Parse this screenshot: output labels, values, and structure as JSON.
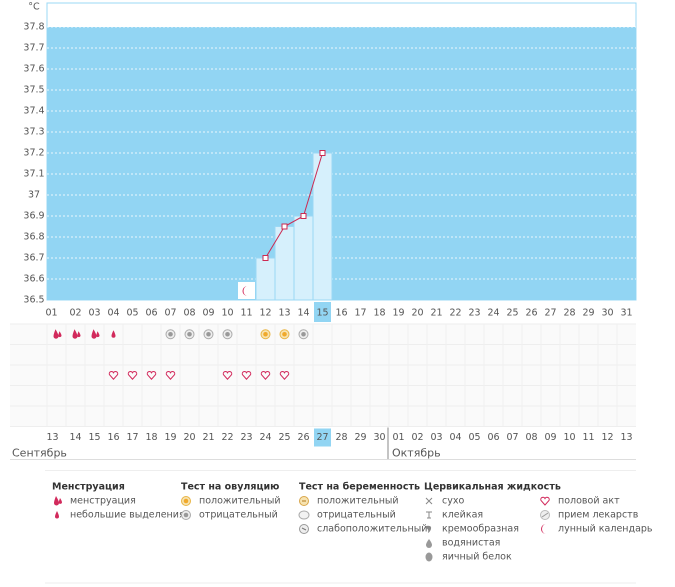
{
  "chart_data": {
    "type": "line",
    "ylabel": "°C",
    "categories": [
      "01",
      "02",
      "03",
      "04",
      "05",
      "06",
      "07",
      "08",
      "09",
      "10",
      "11",
      "12",
      "13",
      "14",
      "15",
      "16",
      "17",
      "18",
      "19",
      "20",
      "21",
      "22",
      "23",
      "24",
      "25",
      "26",
      "27",
      "28",
      "29",
      "30",
      "31"
    ],
    "series": [
      {
        "name": "temperature",
        "color": "#cc2a52",
        "values": [
          null,
          null,
          null,
          null,
          null,
          null,
          null,
          null,
          null,
          null,
          null,
          36.7,
          36.85,
          36.9,
          37.2,
          null,
          null,
          null,
          null,
          null,
          null,
          null,
          null,
          null,
          null,
          null,
          null,
          null,
          null,
          null,
          null
        ]
      }
    ],
    "lunar": [
      null,
      null,
      null,
      null,
      null,
      null,
      null,
      null,
      null,
      null,
      "moon",
      null,
      null,
      null,
      null,
      null,
      null,
      null,
      null,
      null,
      null,
      null,
      null,
      null,
      null,
      null,
      null,
      null,
      null,
      null,
      null
    ],
    "today": [
      false,
      false,
      false,
      false,
      false,
      false,
      false,
      false,
      false,
      false,
      false,
      false,
      false,
      false,
      true,
      false,
      false,
      false,
      false,
      false,
      false,
      false,
      false,
      false,
      false,
      false,
      false,
      false,
      false,
      false,
      false
    ],
    "ylim": [
      36.5,
      37.9
    ],
    "yticks": [
      36.5,
      36.6,
      36.7,
      36.8,
      36.9,
      37,
      37.1,
      37.2,
      37.3,
      37.4,
      37.5,
      37.6,
      37.7,
      37.8
    ],
    "grid": true,
    "area_color": "#92d5f3"
  },
  "calendar": {
    "rows": [
      [
        "menstruation",
        "menstruation",
        "menstruation",
        "spotting",
        null,
        null,
        "ovu_neg",
        "ovu_neg",
        "ovu_neg",
        "ovu_neg",
        null,
        "ovu_pos",
        "ovu_pos",
        "ovu_neg",
        null,
        null,
        null,
        null,
        null,
        null,
        null,
        null,
        null,
        null,
        null,
        null,
        null,
        null,
        null,
        null,
        null
      ],
      [
        null,
        null,
        null,
        null,
        null,
        null,
        null,
        null,
        null,
        null,
        null,
        null,
        null,
        null,
        null,
        null,
        null,
        null,
        null,
        null,
        null,
        null,
        null,
        null,
        null,
        null,
        null,
        null,
        null,
        null,
        null
      ],
      [
        null,
        null,
        null,
        "heart",
        "heart",
        "heart",
        "heart",
        null,
        null,
        "heart",
        "heart",
        "heart",
        "heart",
        null,
        null,
        null,
        null,
        null,
        null,
        null,
        null,
        null,
        null,
        null,
        null,
        null,
        null,
        null,
        null,
        null,
        null
      ],
      [
        null,
        null,
        null,
        null,
        null,
        null,
        null,
        null,
        null,
        null,
        null,
        null,
        null,
        null,
        null,
        null,
        null,
        null,
        null,
        null,
        null,
        null,
        null,
        null,
        null,
        null,
        null,
        null,
        null,
        null,
        null
      ],
      [
        null,
        null,
        null,
        null,
        null,
        null,
        null,
        null,
        null,
        null,
        null,
        null,
        null,
        null,
        null,
        null,
        null,
        null,
        null,
        null,
        null,
        null,
        null,
        null,
        null,
        null,
        null,
        null,
        null,
        null,
        null
      ]
    ],
    "dates": [
      "13",
      "14",
      "15",
      "16",
      "17",
      "18",
      "19",
      "20",
      "21",
      "22",
      "23",
      "24",
      "25",
      "26",
      "27",
      "28",
      "29",
      "30",
      "01",
      "02",
      "03",
      "04",
      "05",
      "06",
      "07",
      "08",
      "09",
      "10",
      "11",
      "12",
      "13"
    ],
    "weekend": [
      false,
      false,
      true,
      true,
      false,
      false,
      false,
      false,
      false,
      true,
      true,
      false,
      false,
      false,
      false,
      false,
      true,
      true,
      false,
      false,
      false,
      false,
      false,
      true,
      true,
      false,
      false,
      false,
      false,
      false,
      true
    ],
    "months": [
      "Сентябрь",
      "Октябрь"
    ]
  },
  "legend": [
    {
      "title": "Менструация",
      "items": [
        {
          "icon": "menstruation",
          "label": "менструация"
        },
        {
          "icon": "spotting",
          "label": "небольшие выделения"
        }
      ]
    },
    {
      "title": "Тест на овуляцию",
      "items": [
        {
          "icon": "ovu_pos",
          "label": "положительный"
        },
        {
          "icon": "ovu_neg",
          "label": "отрицательный"
        }
      ]
    },
    {
      "title": "Тест на беременность",
      "items": [
        {
          "icon": "preg_pos",
          "label": "положительный"
        },
        {
          "icon": "preg_neg",
          "label": "отрицательный"
        },
        {
          "icon": "preg_weak",
          "label": "слабоположительный"
        }
      ]
    },
    {
      "title": "Цервикальная жидкость",
      "items": [
        {
          "icon": "dry",
          "label": "сухо"
        },
        {
          "icon": "sticky",
          "label": "клейкая"
        },
        {
          "icon": "creamy",
          "label": "кремообразная"
        },
        {
          "icon": "watery",
          "label": "водянистая"
        },
        {
          "icon": "eggwhite",
          "label": "яичный белок"
        }
      ]
    },
    {
      "items": [
        {
          "icon": "heart",
          "label": "половой акт"
        },
        {
          "icon": "pill",
          "label": "прием лекарств"
        },
        {
          "icon": "moon",
          "label": "лунный календарь"
        }
      ]
    }
  ]
}
